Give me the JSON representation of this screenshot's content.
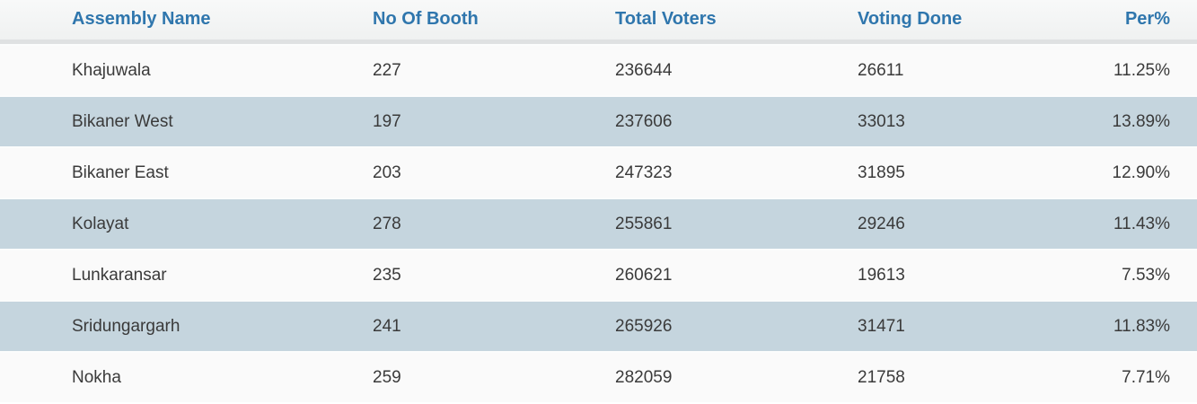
{
  "table": {
    "columns": [
      {
        "key": "assembly",
        "label": "Assembly Name",
        "align": "left"
      },
      {
        "key": "booth",
        "label": "No Of Booth",
        "align": "left"
      },
      {
        "key": "voters",
        "label": "Total Voters",
        "align": "left"
      },
      {
        "key": "done",
        "label": "Voting Done",
        "align": "left"
      },
      {
        "key": "per",
        "label": "Per%",
        "align": "right"
      }
    ],
    "rows": [
      [
        "Khajuwala",
        "227",
        "236644",
        "26611",
        "11.25%"
      ],
      [
        "Bikaner West",
        "197",
        "237606",
        "33013",
        "13.89%"
      ],
      [
        "Bikaner East",
        "203",
        "247323",
        "31895",
        "12.90%"
      ],
      [
        "Kolayat",
        "278",
        "255861",
        "29246",
        "11.43%"
      ],
      [
        "Lunkaransar",
        "235",
        "260621",
        "19613",
        "7.53%"
      ],
      [
        "Sridungargarh",
        "241",
        "265926",
        "31471",
        "11.83%"
      ],
      [
        "Nokha",
        "259",
        "282059",
        "21758",
        "7.71%"
      ]
    ]
  },
  "colors": {
    "header_text": "#2f76ad",
    "header_bg_top": "#f8f9f9",
    "header_bg_bottom": "#eff1f1",
    "header_border": "#dfe1e2",
    "stripe_row_bg": "#c5d5de",
    "plain_row_bg": "#fafafa",
    "body_text": "#3a3a3a"
  }
}
